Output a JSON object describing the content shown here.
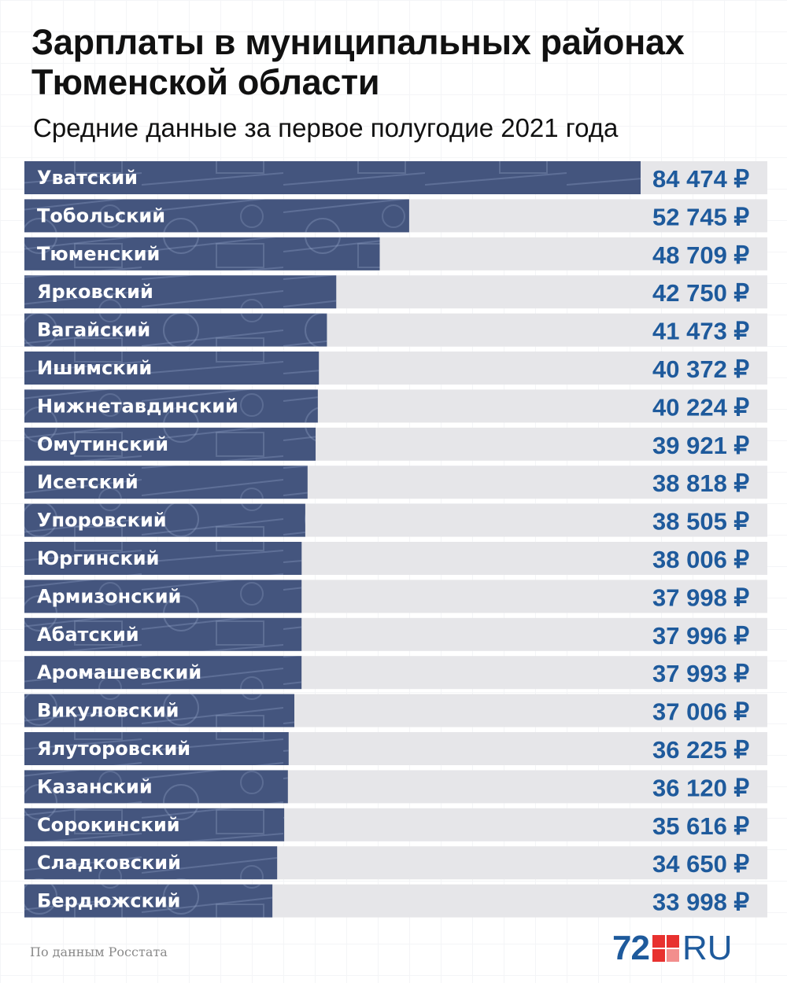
{
  "title": "Зарплаты в муниципальных районах Тюменской области",
  "subtitle": "Средние данные за первое полугодие 2021 года",
  "source": "По данным Росстата",
  "logo": {
    "number": "72",
    "suffix": "RU",
    "mark_color": "#e8312f",
    "text_color": "#1e5a9c"
  },
  "colors": {
    "bar": "#44557e",
    "track": "#e6e6e9",
    "value_text": "#1e5a9c"
  },
  "chart_data": {
    "type": "bar",
    "orientation": "horizontal",
    "categories": [
      "Уватский",
      "Тобольский",
      "Тюменский",
      "Ярковский",
      "Вагайский",
      "Ишимский",
      "Нижнетавдинский",
      "Омутинский",
      "Исетский",
      "Упоровский",
      "Юргинский",
      "Армизонский",
      "Абатский",
      "Аромашевский",
      "Викуловский",
      "Ялуторовский",
      "Казанский",
      "Сорокинский",
      "Сладковский",
      "Бердюжский"
    ],
    "values": [
      84474,
      52745,
      48709,
      42750,
      41473,
      40372,
      40224,
      39921,
      38818,
      38505,
      38006,
      37998,
      37996,
      37993,
      37006,
      36225,
      36120,
      35616,
      34650,
      33998
    ],
    "value_labels": [
      "84 474 ₽",
      "52 745 ₽",
      "48 709 ₽",
      "42 750 ₽",
      "41 473 ₽",
      "40 372 ₽",
      "40 224 ₽",
      "39 921 ₽",
      "38 818 ₽",
      "38 505 ₽",
      "38 006 ₽",
      "37 998 ₽",
      "37 996 ₽",
      "37 993 ₽",
      "37 006 ₽",
      "36 225 ₽",
      "36 120 ₽",
      "35 616 ₽",
      "34 650 ₽",
      "33 998 ₽"
    ],
    "grid": false
  }
}
